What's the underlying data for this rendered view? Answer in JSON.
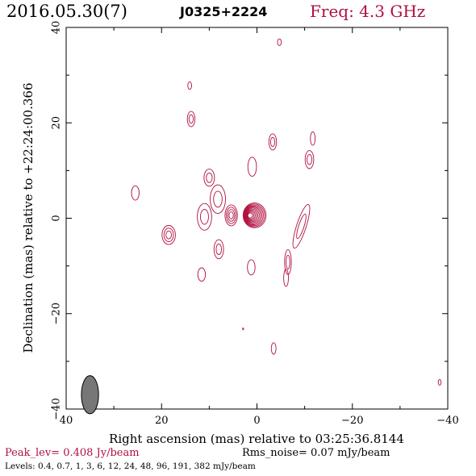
{
  "header": {
    "date": "2016.05.30(7)",
    "source": "J0325+2224",
    "freq": "Freq: 4.3 GHz"
  },
  "footer": {
    "peak": "Peak_lev=  0.408 Jy/beam",
    "rms": "Rms_noise= 0.07 mJy/beam",
    "levels": "Levels: 0.4, 0.7,    1,    3,    6,   12,   24,   48,   96, 191, 382 mJy/beam"
  },
  "colors": {
    "contour": "#b0103e",
    "accent": "#b0103e",
    "beam_fill": "#777777"
  },
  "chart_data": {
    "type": "contour",
    "xlabel": "Right ascension (mas) relative to 03:25:36.8144",
    "ylabel": "Declination (mas) relative to +22:24:00.366",
    "xlim": [
      40,
      -40
    ],
    "ylim": [
      -40,
      40
    ],
    "xticks": [
      "40",
      "20",
      "0",
      "−20",
      "−40"
    ],
    "yticks": [
      "−40",
      "−20",
      "0",
      "20",
      "40"
    ],
    "beam": {
      "x": 35,
      "y": -37,
      "major": 4.0,
      "minor": 1.8
    },
    "contour_levels_mJy": [
      0.4,
      0.7,
      1,
      3,
      6,
      12,
      24,
      48,
      96,
      191,
      382
    ],
    "components": [
      {
        "x": 0.5,
        "y": 0.6,
        "rx": 2.4,
        "ry": 2.6,
        "levels": 11,
        "comment": "core"
      },
      {
        "x": 5.4,
        "y": 0.6,
        "rx": 1.3,
        "ry": 2.2,
        "levels": 4
      },
      {
        "x": 8.2,
        "y": 4.0,
        "rx": 1.6,
        "ry": 3.0,
        "levels": 2
      },
      {
        "x": 10.0,
        "y": 8.5,
        "rx": 1.1,
        "ry": 1.8,
        "levels": 2
      },
      {
        "x": 8.0,
        "y": -6.5,
        "rx": 1.0,
        "ry": 2.0,
        "levels": 2
      },
      {
        "x": 11.0,
        "y": 0.3,
        "rx": 1.5,
        "ry": 2.8,
        "levels": 2
      },
      {
        "x": 18.5,
        "y": -3.5,
        "rx": 1.4,
        "ry": 2.0,
        "levels": 3
      },
      {
        "x": 25.5,
        "y": 5.3,
        "rx": 0.8,
        "ry": 1.5,
        "levels": 1
      },
      {
        "x": 13.8,
        "y": 20.8,
        "rx": 0.8,
        "ry": 1.6,
        "levels": 2
      },
      {
        "x": 14.1,
        "y": 27.8,
        "rx": 0.4,
        "ry": 0.8,
        "levels": 1
      },
      {
        "x": 11.6,
        "y": -11.8,
        "rx": 0.8,
        "ry": 1.4,
        "levels": 1
      },
      {
        "x": 1.0,
        "y": 10.8,
        "rx": 0.9,
        "ry": 2.0,
        "levels": 1
      },
      {
        "x": -3.3,
        "y": 16.0,
        "rx": 0.8,
        "ry": 1.7,
        "levels": 2
      },
      {
        "x": 1.2,
        "y": -10.3,
        "rx": 0.8,
        "ry": 1.6,
        "levels": 1
      },
      {
        "x": -4.7,
        "y": 36.9,
        "rx": 0.4,
        "ry": 0.7,
        "levels": 1
      },
      {
        "x": -11.0,
        "y": 12.3,
        "rx": 0.9,
        "ry": 1.9,
        "levels": 2
      },
      {
        "x": -11.7,
        "y": 16.7,
        "rx": 0.5,
        "ry": 1.4,
        "levels": 1
      },
      {
        "x": -9.3,
        "y": -1.7,
        "rx": 1.0,
        "ry": 4.8,
        "levels": 2,
        "angle": 18
      },
      {
        "x": -6.5,
        "y": -9.2,
        "rx": 0.7,
        "ry": 2.6,
        "levels": 2
      },
      {
        "x": -6.1,
        "y": -12.5,
        "rx": 0.5,
        "ry": 1.8,
        "levels": 1
      },
      {
        "x": -3.5,
        "y": -27.3,
        "rx": 0.5,
        "ry": 1.2,
        "levels": 1
      },
      {
        "x": -38.3,
        "y": -34.4,
        "rx": 0.3,
        "ry": 0.6,
        "levels": 1
      },
      {
        "x": 2.9,
        "y": -23.2,
        "rx": 0.1,
        "ry": 0.2,
        "levels": 1
      }
    ]
  }
}
